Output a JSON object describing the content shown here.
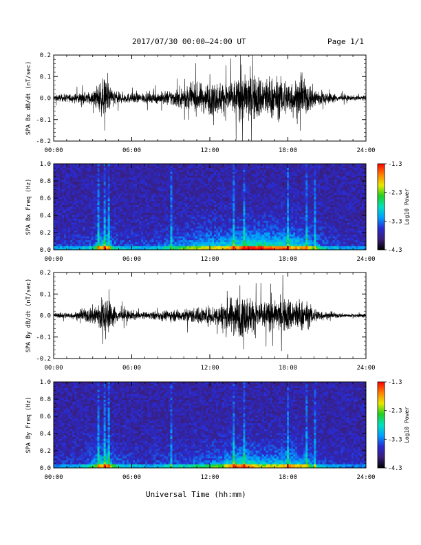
{
  "header": {
    "title": "2017/07/30  00:00–24:00 UT",
    "page_label": "Page 1/1"
  },
  "x_axis_title": "Universal Time (hh:mm)",
  "colors": {
    "trace": "#000000",
    "colorbar": [
      "#000000",
      "#3a1f7a",
      "#2a2ad0",
      "#00a0ff",
      "#00e0c0",
      "#20d020",
      "#e8e800",
      "#ff8000",
      "#ff0000"
    ]
  },
  "chart_data": [
    {
      "type": "line",
      "ylabel": "SPA Bx dB/dt (nT/sec)",
      "xlim": [
        0,
        24
      ],
      "ylim": [
        -0.2,
        0.2
      ],
      "x_ticks": [
        "00:00",
        "06:00",
        "12:00",
        "18:00",
        "24:00"
      ],
      "y_ticks": [
        "-0.2",
        "-0.1",
        "0.0",
        "0.1",
        "0.2"
      ],
      "amplitude_envelope": {
        "hours": [
          0,
          1,
          2,
          3,
          3.5,
          4,
          4.5,
          5,
          6,
          7,
          8,
          9,
          10,
          11,
          12,
          13,
          14,
          15,
          16,
          17,
          18,
          19,
          19.5,
          20,
          21,
          22,
          23,
          24
        ],
        "amp": [
          0.02,
          0.025,
          0.03,
          0.04,
          0.1,
          0.12,
          0.06,
          0.035,
          0.03,
          0.03,
          0.035,
          0.05,
          0.07,
          0.09,
          0.1,
          0.1,
          0.12,
          0.15,
          0.14,
          0.13,
          0.12,
          0.11,
          0.1,
          0.07,
          0.035,
          0.02,
          0.015,
          0.015
        ]
      }
    },
    {
      "type": "heatmap",
      "ylabel": "SPA Bx Freq (Hz)",
      "xlim": [
        0,
        24
      ],
      "ylim": [
        0,
        1.0
      ],
      "x_ticks": [
        "00:00",
        "06:00",
        "12:00",
        "18:00",
        "24:00"
      ],
      "y_ticks": [
        "0.0",
        "0.2",
        "0.4",
        "0.6",
        "0.8",
        "1.0"
      ],
      "colorbar": {
        "label": "Log10 Power",
        "min": -4.3,
        "max": -1.3,
        "ticks": [
          "-1.3",
          "-2.3",
          "-3.3",
          "-4.3"
        ]
      }
    },
    {
      "type": "line",
      "ylabel": "SPA By dB/dt (nT/sec)",
      "xlim": [
        0,
        24
      ],
      "ylim": [
        -0.2,
        0.2
      ],
      "x_ticks": [
        "00:00",
        "06:00",
        "12:00",
        "18:00",
        "24:00"
      ],
      "y_ticks": [
        "-0.2",
        "-0.1",
        "0.0",
        "0.1",
        "0.2"
      ],
      "amplitude_envelope": {
        "hours": [
          0,
          1,
          2,
          3,
          3.5,
          4,
          4.5,
          5,
          6,
          7,
          8,
          9,
          10,
          11,
          12,
          13,
          14,
          15,
          16,
          17,
          18,
          19,
          19.5,
          20,
          21,
          22,
          23,
          24
        ],
        "amp": [
          0.015,
          0.02,
          0.025,
          0.06,
          0.1,
          0.13,
          0.07,
          0.04,
          0.03,
          0.02,
          0.03,
          0.035,
          0.04,
          0.05,
          0.06,
          0.08,
          0.13,
          0.12,
          0.09,
          0.09,
          0.11,
          0.1,
          0.08,
          0.05,
          0.02,
          0.015,
          0.012,
          0.012
        ]
      }
    },
    {
      "type": "heatmap",
      "ylabel": "SPA By Freq (Hz)",
      "xlim": [
        0,
        24
      ],
      "ylim": [
        0,
        1.0
      ],
      "x_ticks": [
        "00:00",
        "06:00",
        "12:00",
        "18:00",
        "24:00"
      ],
      "y_ticks": [
        "0.0",
        "0.2",
        "0.4",
        "0.6",
        "0.8",
        "1.0"
      ],
      "colorbar": {
        "label": "Log10 Power",
        "min": -4.3,
        "max": -1.3,
        "ticks": [
          "-1.3",
          "-2.3",
          "-3.3",
          "-4.3"
        ]
      }
    }
  ]
}
